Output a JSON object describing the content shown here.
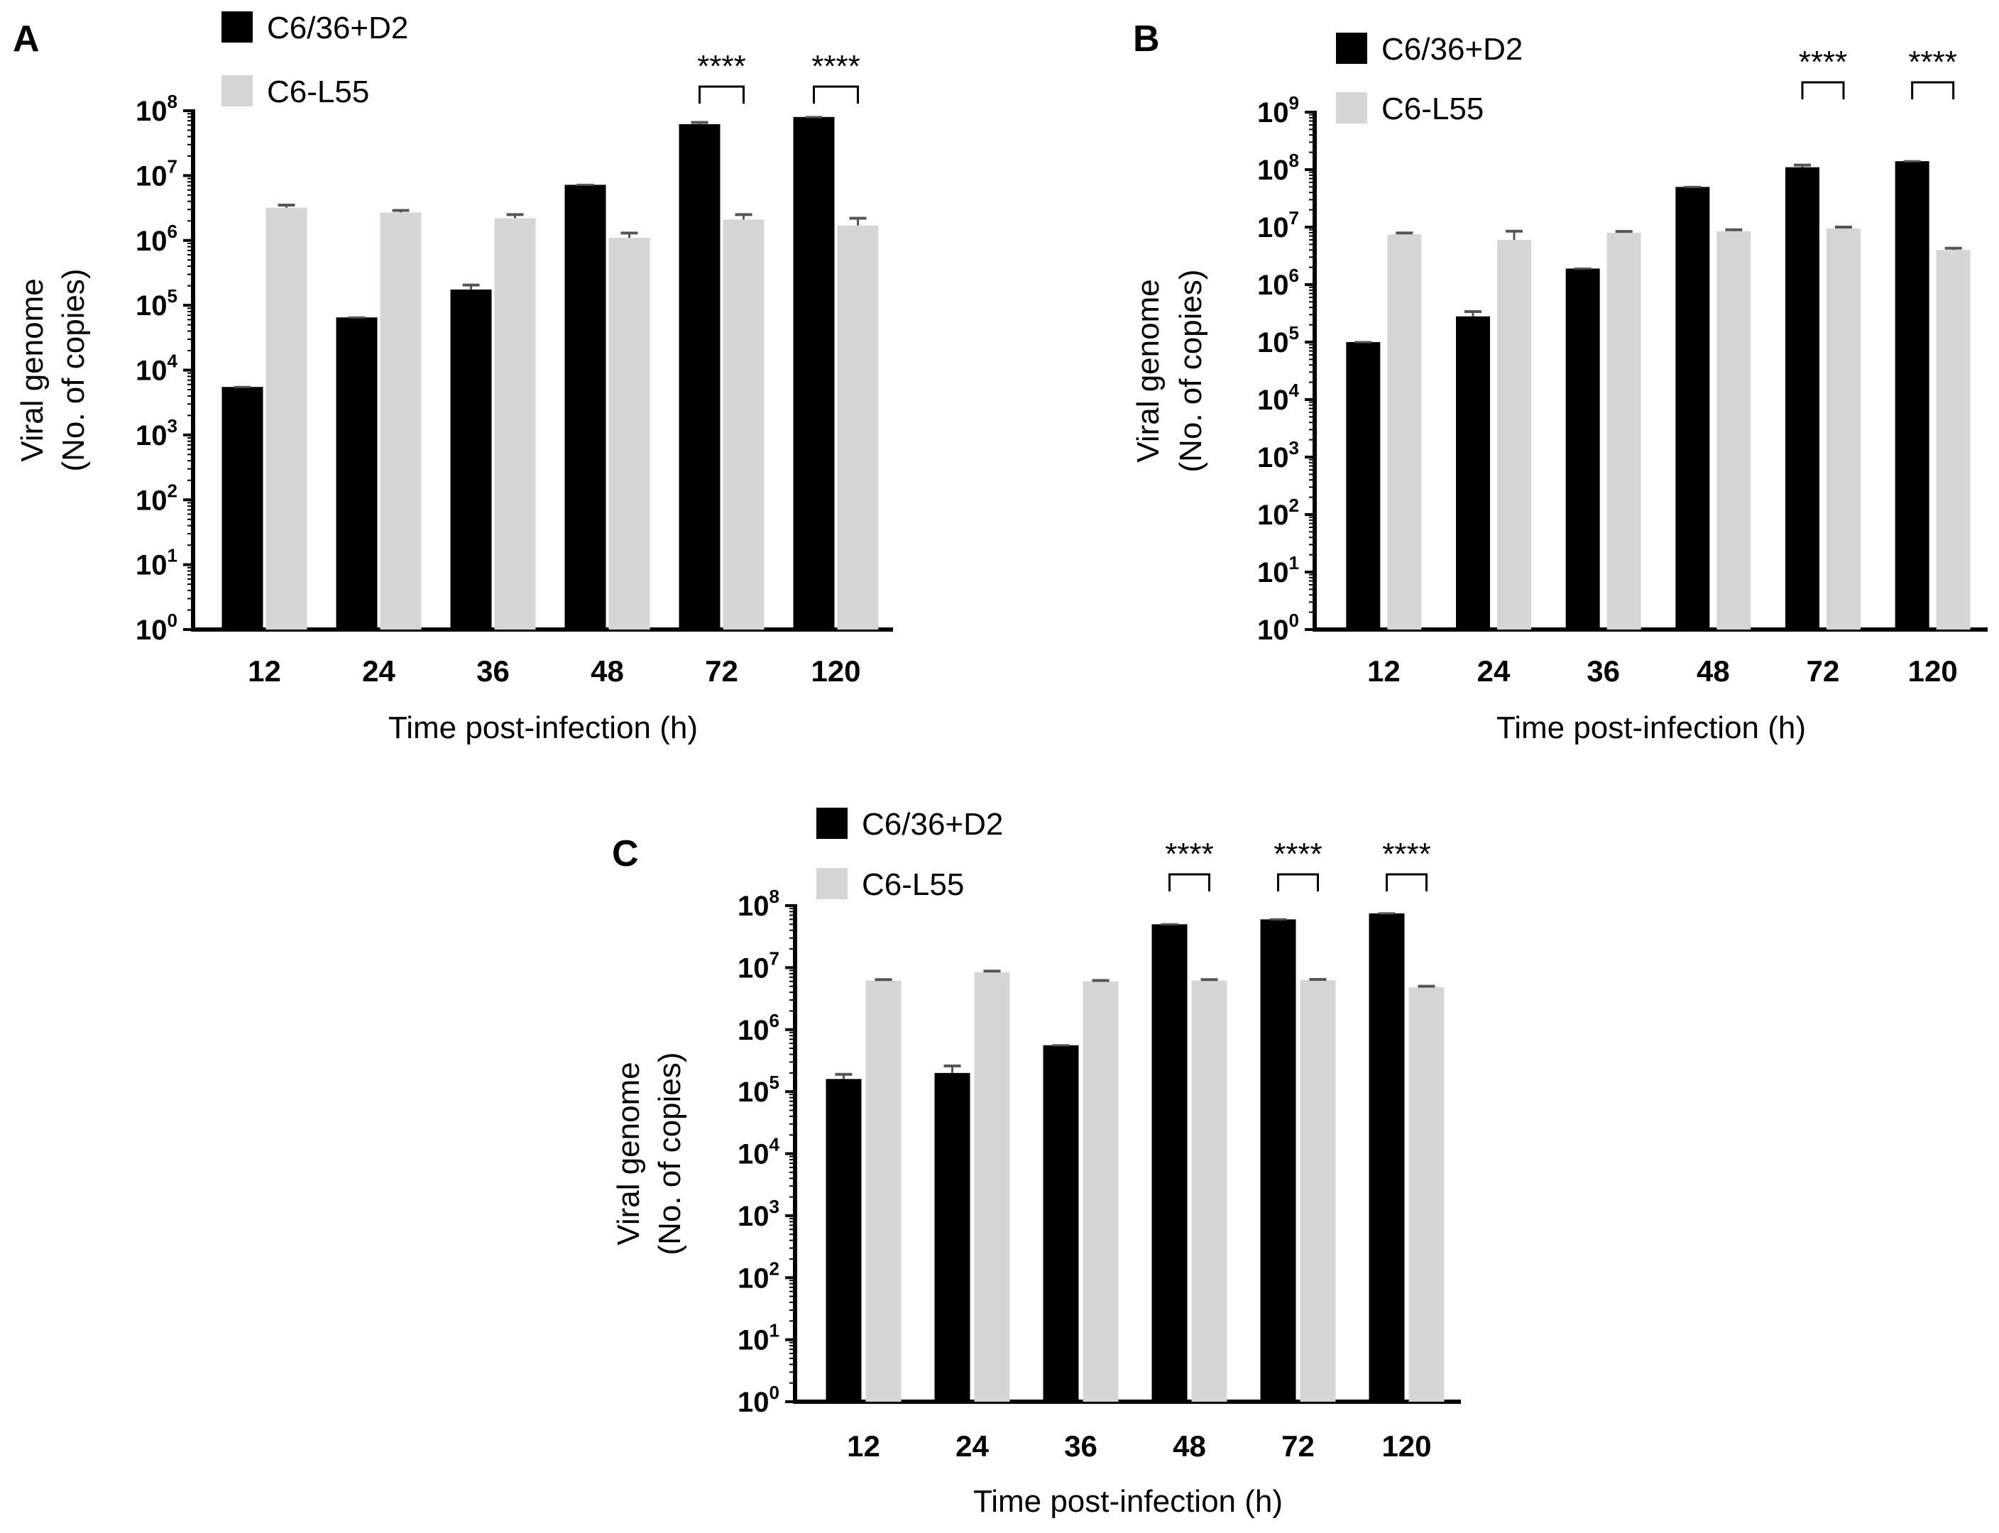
{
  "colors": {
    "series_dark": "#000000",
    "series_light": "#d6d6d6",
    "axis": "#000000",
    "error_bar": "#555555"
  },
  "chart_data": [
    {
      "panel_label": "A",
      "type": "bar",
      "scale": "log",
      "categories": [
        "12",
        "24",
        "36",
        "48",
        "72",
        "120"
      ],
      "series": [
        {
          "name": "C6/36+D2",
          "values": [
            5500,
            65000,
            175000,
            7200000,
            62000000,
            80000000
          ],
          "errors": [
            0,
            0,
            30000,
            0,
            4000000,
            0
          ]
        },
        {
          "name": "C6-L55",
          "values": [
            3200000,
            2700000,
            2200000,
            1100000,
            2100000,
            1700000
          ],
          "errors": [
            300000,
            200000,
            300000,
            200000,
            400000,
            500000
          ]
        }
      ],
      "ytick_exponents": [
        0,
        1,
        2,
        3,
        4,
        5,
        6,
        7,
        8
      ],
      "ylim_exponents": [
        0,
        8
      ],
      "xlabel": "Time post-infection  (h)",
      "ylabel_line1": "Viral genome",
      "ylabel_line2": "(No. of copies)",
      "legend": [
        "C6/36+D2",
        "C6-L55"
      ],
      "significance": [
        {
          "category_index": 4,
          "label": "****"
        },
        {
          "category_index": 5,
          "label": "****"
        }
      ]
    },
    {
      "panel_label": "B",
      "type": "bar",
      "scale": "log",
      "categories": [
        "12",
        "24",
        "36",
        "48",
        "72",
        "120"
      ],
      "series": [
        {
          "name": "C6/36+D2",
          "values": [
            100000,
            280000,
            1900000,
            50000000,
            110000000,
            140000000
          ],
          "errors": [
            0,
            60000,
            0,
            0,
            10000000,
            0
          ]
        },
        {
          "name": "C6-L55",
          "values": [
            7500000,
            6000000,
            8000000,
            8500000,
            9500000,
            4000000
          ],
          "errors": [
            400000,
            2500000,
            400000,
            500000,
            500000,
            300000
          ]
        }
      ],
      "ytick_exponents": [
        0,
        1,
        2,
        3,
        4,
        5,
        6,
        7,
        8,
        9
      ],
      "ylim_exponents": [
        0,
        9
      ],
      "xlabel": "Time post-infection  (h)",
      "ylabel_line1": "Viral genome",
      "ylabel_line2": "(No. of copies)",
      "legend": [
        "C6/36+D2",
        "C6-L55"
      ],
      "significance": [
        {
          "category_index": 4,
          "label": "****"
        },
        {
          "category_index": 5,
          "label": "****"
        }
      ]
    },
    {
      "panel_label": "C",
      "type": "bar",
      "scale": "log",
      "categories": [
        "12",
        "24",
        "36",
        "48",
        "72",
        "120"
      ],
      "series": [
        {
          "name": "C6/36+D2",
          "values": [
            160000,
            200000,
            560000,
            50000000,
            60000000,
            75000000
          ],
          "errors": [
            30000,
            60000,
            0,
            0,
            0,
            0
          ]
        },
        {
          "name": "C6-L55",
          "values": [
            6200000,
            8400000,
            6000000,
            6200000,
            6300000,
            4800000
          ],
          "errors": [
            200000,
            400000,
            200000,
            200000,
            150000,
            200000
          ]
        }
      ],
      "ytick_exponents": [
        0,
        1,
        2,
        3,
        4,
        5,
        6,
        7,
        8
      ],
      "ylim_exponents": [
        0,
        8
      ],
      "xlabel": "Time post-infection  (h)",
      "ylabel_line1": "Viral genome",
      "ylabel_line2": "(No. of copies)",
      "legend": [
        "C6/36+D2",
        "C6-L55"
      ],
      "significance": [
        {
          "category_index": 3,
          "label": "****"
        },
        {
          "category_index": 4,
          "label": "****"
        },
        {
          "category_index": 5,
          "label": "****"
        }
      ]
    }
  ]
}
